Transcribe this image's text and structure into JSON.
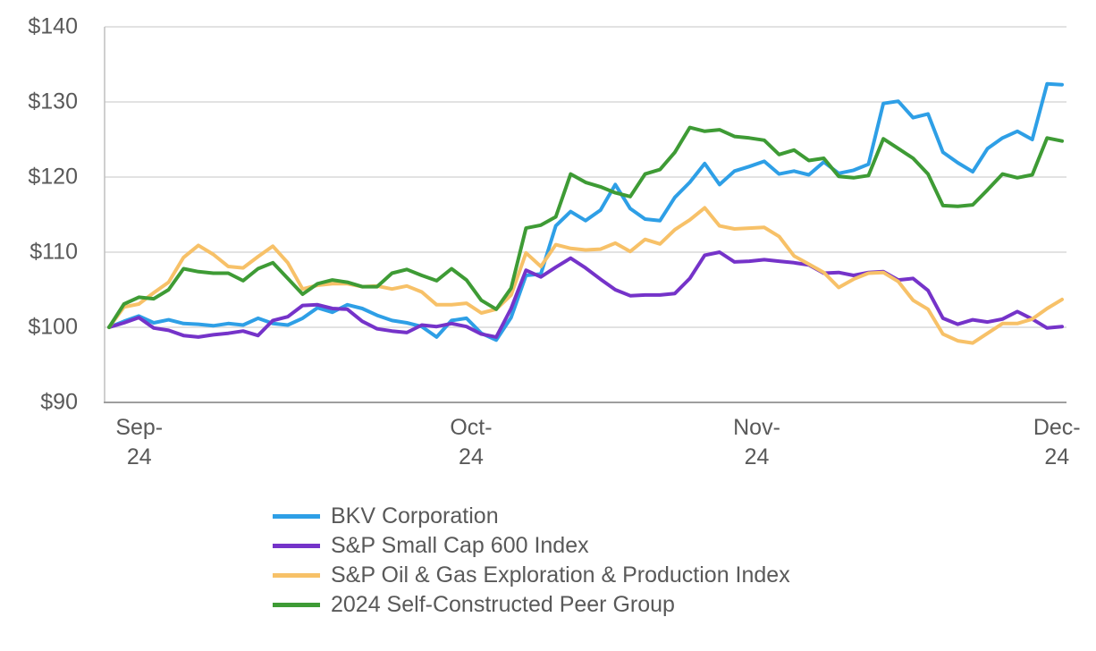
{
  "chart_data": {
    "type": "line",
    "title": "",
    "xlabel": "",
    "ylabel": "",
    "ylim": [
      90,
      140
    ],
    "grid": "horizontal",
    "legend_position": "bottom-left",
    "y_ticks": [
      {
        "label": "$140",
        "value": 140
      },
      {
        "label": "$130",
        "value": 130
      },
      {
        "label": "$120",
        "value": 120
      },
      {
        "label": "$110",
        "value": 110
      },
      {
        "label": "$100",
        "value": 100
      },
      {
        "label": "$90",
        "value": 90
      }
    ],
    "x_ticks": [
      {
        "line1": "Sep-",
        "line2": "24",
        "pos": 0.036
      },
      {
        "line1": "Oct-",
        "line2": "24",
        "pos": 0.381
      },
      {
        "line1": "Nov-",
        "line2": "24",
        "pos": 0.678
      },
      {
        "line1": "Dec-",
        "line2": "24",
        "pos": 0.99
      }
    ],
    "series": [
      {
        "name": "BKV Corporation",
        "color": "#2E9FE6",
        "values": [
          100,
          100.8,
          101.5,
          100.6,
          101.0,
          100.5,
          100.4,
          100.2,
          100.5,
          100.3,
          101.2,
          100.5,
          100.3,
          101.2,
          102.6,
          102.0,
          103.0,
          102.5,
          101.6,
          100.9,
          100.6,
          100.1,
          98.7,
          100.9,
          101.2,
          99.2,
          98.3,
          101.3,
          106.9,
          107.1,
          113.5,
          115.4,
          114.2,
          115.6,
          119.0,
          115.8,
          114.4,
          114.2,
          117.3,
          119.3,
          121.8,
          119.0,
          120.8,
          121.4,
          122.1,
          120.4,
          120.8,
          120.3,
          122.0,
          120.5,
          120.9,
          121.7,
          129.8,
          130.1,
          127.9,
          128.4,
          123.3,
          121.9,
          120.7,
          123.8,
          125.2,
          126.1,
          125.0,
          132.4,
          132.3
        ]
      },
      {
        "name": "S&P Small Cap 600 Index",
        "color": "#7533C9",
        "values": [
          100,
          100.6,
          101.3,
          99.9,
          99.6,
          98.9,
          98.7,
          99.0,
          99.2,
          99.5,
          98.9,
          100.9,
          101.4,
          102.9,
          103.0,
          102.5,
          102.4,
          100.8,
          99.8,
          99.5,
          99.3,
          100.3,
          100.1,
          100.5,
          100.1,
          99.1,
          98.7,
          102.5,
          107.6,
          106.7,
          108.0,
          109.2,
          107.9,
          106.4,
          105.0,
          104.2,
          104.3,
          104.3,
          104.5,
          106.5,
          109.6,
          110.0,
          108.7,
          108.8,
          109.0,
          108.8,
          108.6,
          108.3,
          107.2,
          107.3,
          106.9,
          107.3,
          107.4,
          106.3,
          106.5,
          104.9,
          101.2,
          100.4,
          101.0,
          100.7,
          101.1,
          102.1,
          101.1,
          99.9,
          100.1
        ]
      },
      {
        "name": "S&P Oil & Gas Exploration & Production Index",
        "color": "#F7C168",
        "values": [
          100,
          102.7,
          103.1,
          104.6,
          106.0,
          109.3,
          110.9,
          109.7,
          108.1,
          107.9,
          109.4,
          110.8,
          108.6,
          105.1,
          105.6,
          105.8,
          105.8,
          105.4,
          105.5,
          105.1,
          105.5,
          104.7,
          103.0,
          103.0,
          103.2,
          101.9,
          102.4,
          104.3,
          109.9,
          108.1,
          111.0,
          110.5,
          110.3,
          110.4,
          111.2,
          110.1,
          111.7,
          111.1,
          113.0,
          114.3,
          115.9,
          113.5,
          113.1,
          113.2,
          113.3,
          112.1,
          109.5,
          108.4,
          107.3,
          105.3,
          106.4,
          107.2,
          107.3,
          106.1,
          103.6,
          102.4,
          99.1,
          98.2,
          97.9,
          99.2,
          100.5,
          100.5,
          101.1,
          102.5,
          103.7
        ]
      },
      {
        "name": "2024 Self-Constructed Peer Group",
        "color": "#3E9B35",
        "values": [
          100,
          103.1,
          104.0,
          103.8,
          105.0,
          107.8,
          107.4,
          107.2,
          107.2,
          106.2,
          107.8,
          108.6,
          106.5,
          104.4,
          105.8,
          106.3,
          106.0,
          105.4,
          105.4,
          107.2,
          107.7,
          106.9,
          106.2,
          107.8,
          106.3,
          103.6,
          102.4,
          105.2,
          113.2,
          113.6,
          114.7,
          120.4,
          119.3,
          118.7,
          117.9,
          117.4,
          120.4,
          121.0,
          123.3,
          126.6,
          126.1,
          126.3,
          125.4,
          125.2,
          124.9,
          123.0,
          123.6,
          122.2,
          122.5,
          120.1,
          119.9,
          120.2,
          125.1,
          123.8,
          122.5,
          120.4,
          116.2,
          116.1,
          116.3,
          118.3,
          120.4,
          119.9,
          120.3,
          125.2,
          124.8
        ]
      }
    ],
    "colors": {
      "grid": "#D9D9D9",
      "axis": "#BFBFBF",
      "axis_bottom": "#9E9E9E",
      "text": "#595959"
    }
  },
  "legend": {
    "items": [
      {
        "label": "BKV Corporation"
      },
      {
        "label": "S&P Small Cap 600 Index"
      },
      {
        "label": "S&P Oil & Gas Exploration & Production Index"
      },
      {
        "label": "2024 Self-Constructed Peer Group"
      }
    ]
  }
}
